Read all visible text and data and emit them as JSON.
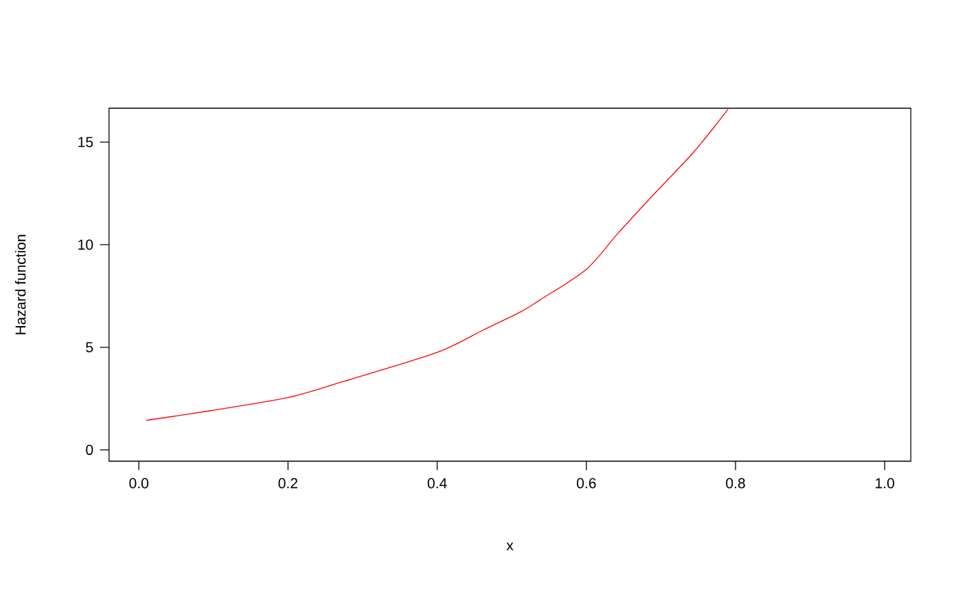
{
  "chart_data": {
    "type": "line",
    "xlabel": "x",
    "ylabel": "Hazard function",
    "x": [
      0.01,
      0.096,
      0.2,
      0.274,
      0.4,
      0.462,
      0.511,
      0.537,
      0.6,
      0.643,
      0.688,
      0.745,
      0.79
    ],
    "series": [
      {
        "color": "#ff0000",
        "values": [
          1.44,
          1.91,
          2.55,
          3.33,
          4.75,
          5.85,
          6.71,
          7.29,
          8.8,
          10.58,
          12.36,
          14.56,
          16.6
        ]
      }
    ],
    "xlim": [
      -0.04,
      1.035
    ],
    "ylim": [
      -0.55,
      16.65
    ],
    "xticks": [
      {
        "value": 0,
        "label": "0.0"
      },
      0.2,
      0.4,
      0.6,
      0.8,
      {
        "value": 1,
        "label": "1.0"
      }
    ],
    "yticks": [
      0,
      5,
      10,
      15
    ],
    "grid": false,
    "marker": "none",
    "line_style": "solid"
  }
}
